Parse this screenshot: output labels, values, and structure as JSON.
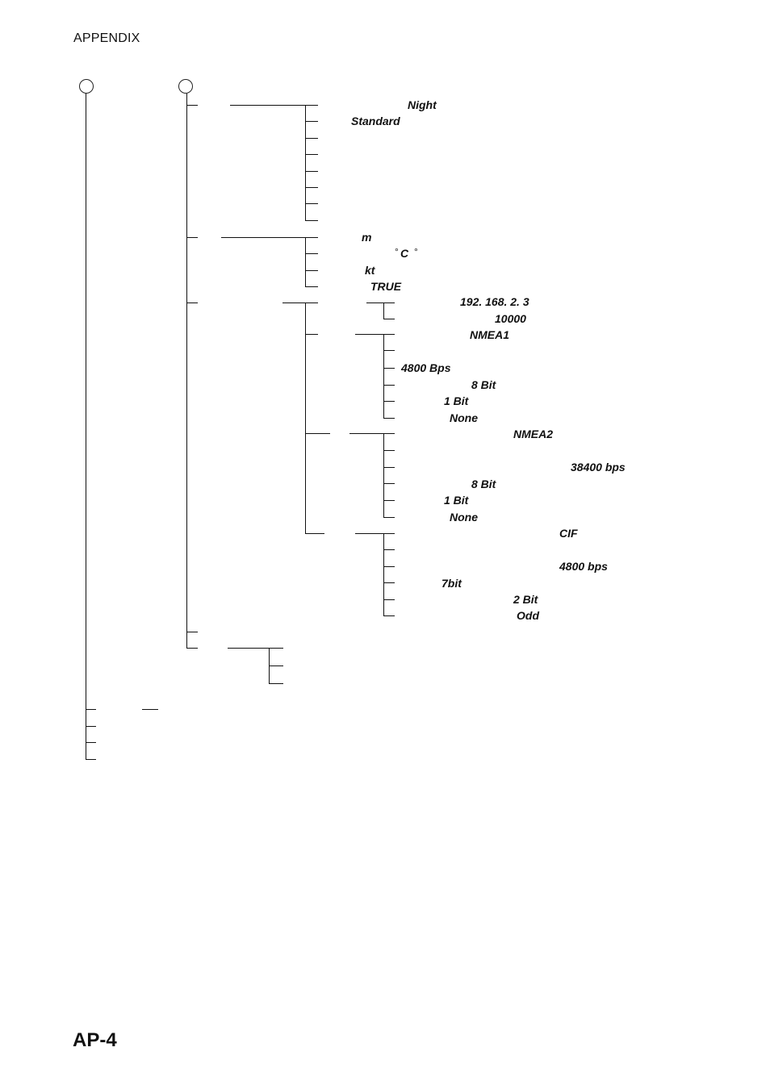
{
  "header": {
    "section": "APPENDIX"
  },
  "footer": {
    "page_number": "AP-4"
  },
  "values": {
    "night": "Night",
    "standard": "Standard",
    "depth_unit": "m",
    "temp_unit": "C",
    "speed_unit": "kt",
    "bearing": "TRUE",
    "ip_address": "192. 168. 2. 3",
    "port": "10000",
    "p1_format": "NMEA1",
    "p1_baud": "4800 Bps",
    "p1_data_bits": "8 Bit",
    "p1_stop_bits": "1 Bit",
    "p1_parity": "None",
    "p2_format": "NMEA2",
    "p2_baud": "38400 bps",
    "p2_data_bits": "8 Bit",
    "p2_stop_bits": "1 Bit",
    "p2_parity": "None",
    "p3_format": "CIF",
    "p3_baud": "4800 bps",
    "p3_data_bits": "7bit",
    "p3_stop_bits": "2 Bit",
    "p3_parity": "Odd"
  }
}
